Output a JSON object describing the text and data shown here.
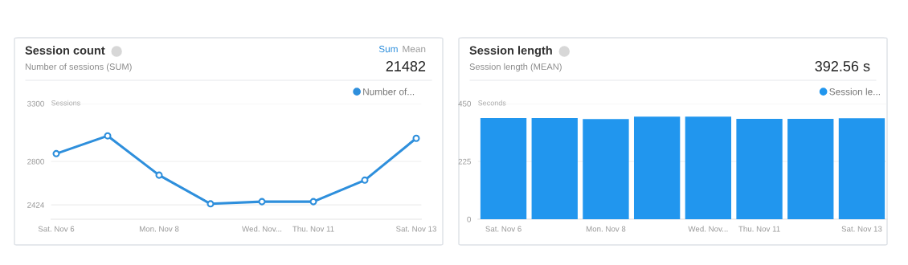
{
  "chart_data": [
    {
      "type": "line",
      "title": "Session count",
      "subtitle": "Number of sessions (SUM)",
      "ylabel": "Sessions",
      "annotations": [
        "Sum",
        "Mean",
        "21482"
      ],
      "categories": [
        "Sat. Nov 6",
        null,
        "Mon. Nov 8",
        null,
        "Wed. Nov...",
        "Thu. Nov 11",
        null,
        "Sat. Nov 13"
      ],
      "series": [
        {
          "name": "Number of...",
          "color": "#2e8fdc",
          "values": [
            2867,
            3021,
            2681,
            2433,
            2452,
            2452,
            2638,
            3000
          ]
        }
      ],
      "ylim": [
        2300,
        3300
      ],
      "yticks": [
        2424,
        2800,
        3300
      ],
      "grid": "y",
      "legend": "top right",
      "marker": "circle",
      "line_style": "solid"
    },
    {
      "type": "bar",
      "title": "Session length",
      "subtitle": "Session length (MEAN)",
      "ylabel": "Seconds",
      "annotations": [
        "392.56 s"
      ],
      "categories": [
        "Sat. Nov 6",
        null,
        "Mon. Nov 8",
        null,
        "Wed. Nov...",
        "Thu. Nov 11",
        null,
        "Sat. Nov 13"
      ],
      "series": [
        {
          "name": "Session le...",
          "color": "#2196ee",
          "values": [
            394,
            394,
            390,
            399,
            399,
            391,
            391,
            393
          ]
        }
      ],
      "ylim": [
        0,
        450
      ],
      "yticks": [
        0,
        225,
        450
      ],
      "grid": "y",
      "legend": "top right"
    }
  ]
}
